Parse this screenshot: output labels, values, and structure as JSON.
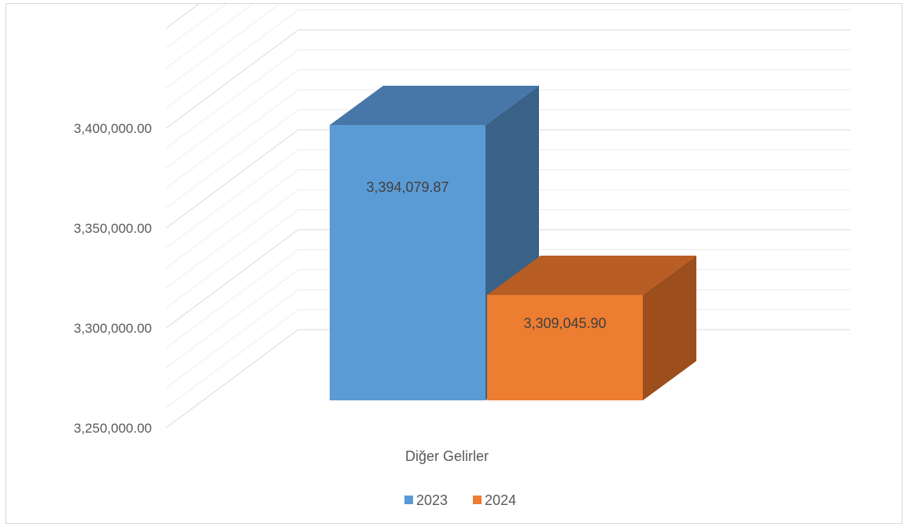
{
  "chart_data": {
    "type": "bar",
    "style": "3d-clustered-column",
    "categories": [
      "Diğer Gelirler"
    ],
    "series": [
      {
        "name": "2023",
        "values": [
          3394079.87
        ],
        "value_label": "3,394,079.87",
        "color": "#5b9bd5",
        "top_color": "#4677a8",
        "side_color": "#3a6288"
      },
      {
        "name": "2024",
        "values": [
          3309045.9
        ],
        "value_label": "3,309,045.90",
        "color": "#ed7d31",
        "top_color": "#b85d23",
        "side_color": "#9c4e1c"
      }
    ],
    "ylim": [
      3250000,
      3400000
    ],
    "y_ticks": [
      "3,250,000.00",
      "3,300,000.00",
      "3,350,000.00",
      "3,400,000.00"
    ],
    "y_tick_values": [
      3250000,
      3300000,
      3350000,
      3400000
    ],
    "minor_gridlines": 4,
    "grid": true,
    "legend": "bottom",
    "title": "",
    "xlabel": "",
    "ylabel": ""
  }
}
